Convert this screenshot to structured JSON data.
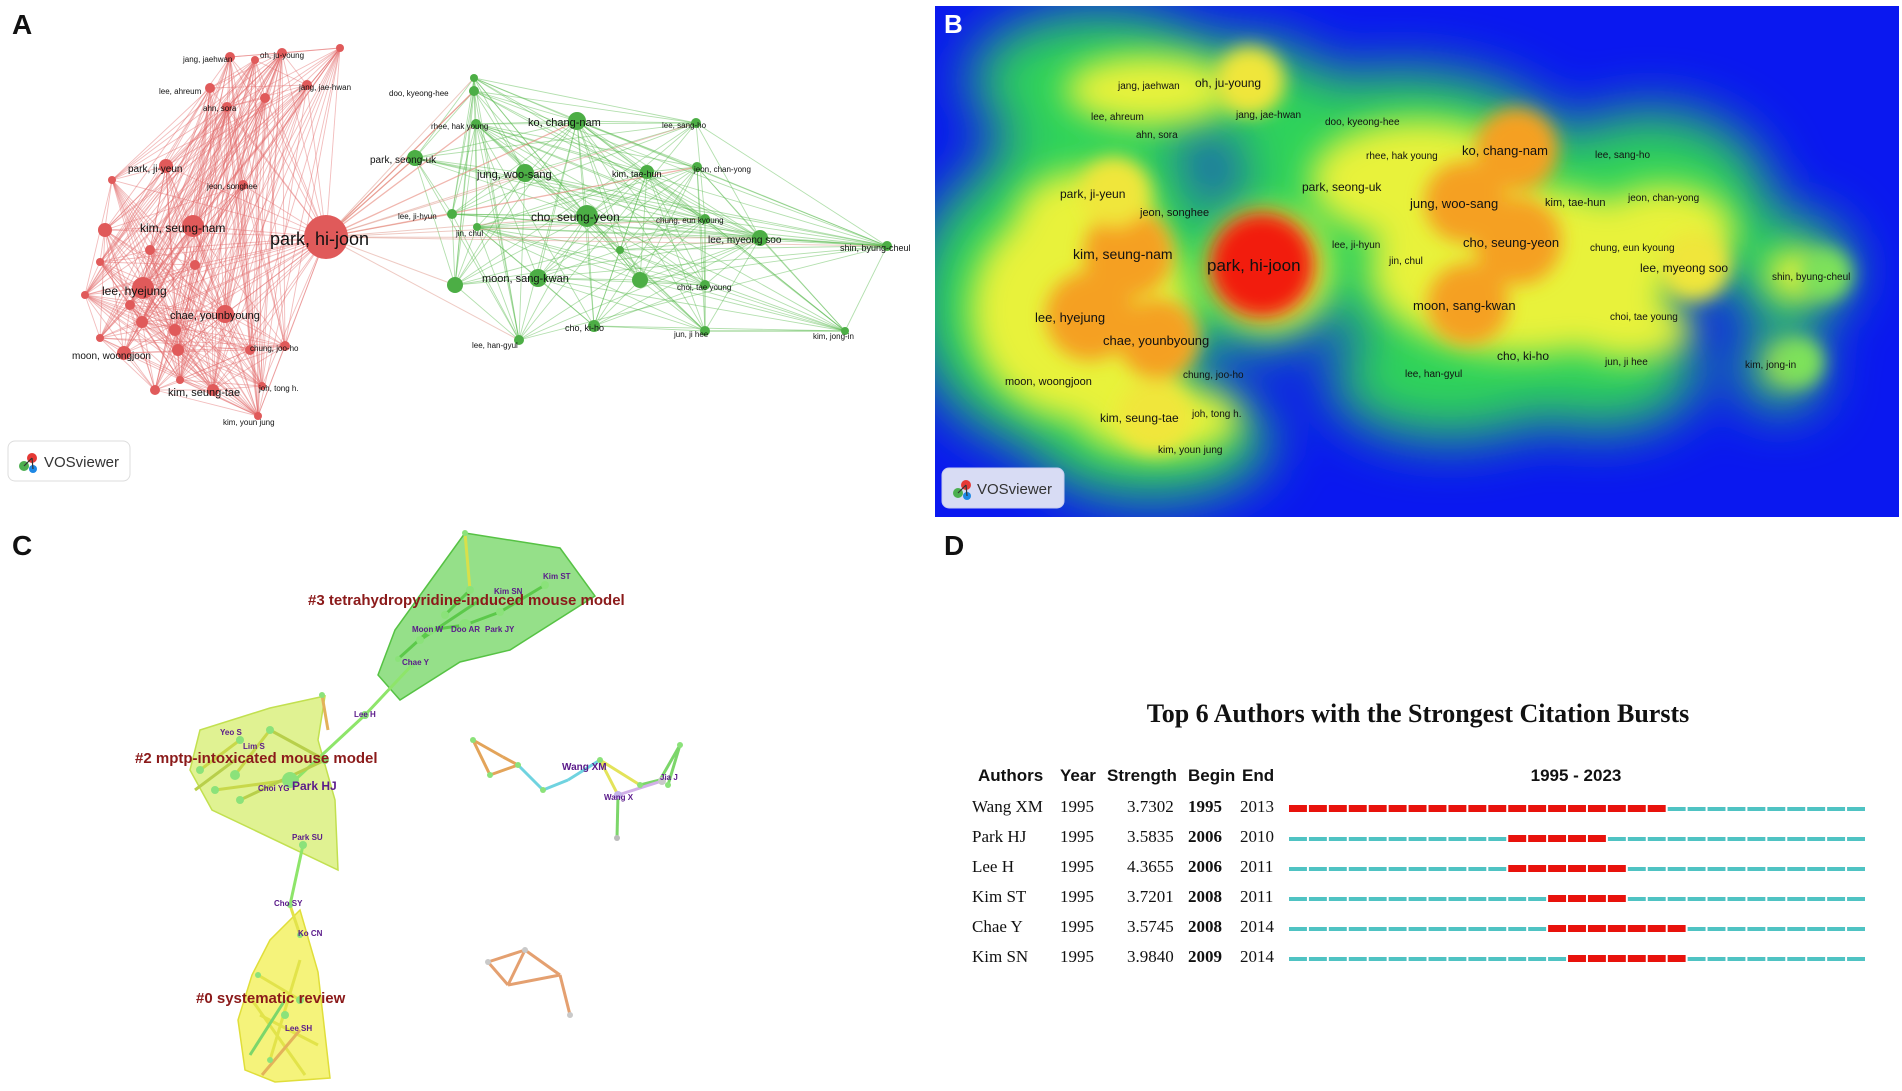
{
  "panels": {
    "a": {
      "letter": "A",
      "watermark": "VOSviewer",
      "edges_from_hub": [
        "park, seong-uk",
        "rhee, hak young",
        "ko, chang-nam",
        "doo, kyeong-hee",
        "jeon, chan-yong"
      ],
      "nodes": [
        {
          "label": "park, hi-joon",
          "cluster": "red",
          "size": 22
        },
        {
          "label": "kim, seung-nam",
          "cluster": "red",
          "size": 11
        },
        {
          "label": "lee, hyejung",
          "cluster": "red",
          "size": 11
        },
        {
          "label": "chae, younbyoung",
          "cluster": "red",
          "size": 9
        },
        {
          "label": "park, ji-yeun",
          "cluster": "red",
          "size": 7
        },
        {
          "label": "jeon, songhee",
          "cluster": "red",
          "size": 5
        },
        {
          "label": "oh, ju-young",
          "cluster": "red",
          "size": 5
        },
        {
          "label": "jang, jaehwan",
          "cluster": "red",
          "size": 5
        },
        {
          "label": "lee, ahreum",
          "cluster": "red",
          "size": 5
        },
        {
          "label": "ahn, sora",
          "cluster": "red",
          "size": 5
        },
        {
          "label": "jang, jae-hwan",
          "cluster": "red",
          "size": 5
        },
        {
          "label": "moon, woongjoon",
          "cluster": "red",
          "size": 7
        },
        {
          "label": "kim, seung-tae",
          "cluster": "red",
          "size": 6
        },
        {
          "label": "chung, joo-ho",
          "cluster": "red",
          "size": 5
        },
        {
          "label": "joh, tong h.",
          "cluster": "red",
          "size": 4
        },
        {
          "label": "kim, youn jung",
          "cluster": "red",
          "size": 4
        },
        {
          "label": "cho, seung-yeon",
          "cluster": "green",
          "size": 11
        },
        {
          "label": "moon, sang-kwan",
          "cluster": "green",
          "size": 9
        },
        {
          "label": "jung, woo-sang",
          "cluster": "green",
          "size": 9
        },
        {
          "label": "ko, chang-nam",
          "cluster": "green",
          "size": 9
        },
        {
          "label": "park, seong-uk",
          "cluster": "green",
          "size": 8
        },
        {
          "label": "kim, tae-hun",
          "cluster": "green",
          "size": 7
        },
        {
          "label": "lee, myeong soo",
          "cluster": "green",
          "size": 8
        },
        {
          "label": "cho, ki-ho",
          "cluster": "green",
          "size": 6
        },
        {
          "label": "doo, kyeong-hee",
          "cluster": "green",
          "size": 5
        },
        {
          "label": "rhee, hak young",
          "cluster": "green",
          "size": 5
        },
        {
          "label": "lee, sang-ho",
          "cluster": "green",
          "size": 5
        },
        {
          "label": "jeon, chan-yong",
          "cluster": "green",
          "size": 5
        },
        {
          "label": "chung, eun kyoung",
          "cluster": "green",
          "size": 5
        },
        {
          "label": "choi, tae young",
          "cluster": "green",
          "size": 5
        },
        {
          "label": "lee, ji-hyun",
          "cluster": "green",
          "size": 5
        },
        {
          "label": "jin, chul",
          "cluster": "green",
          "size": 4
        },
        {
          "label": "lee, han-gyul",
          "cluster": "green",
          "size": 5
        },
        {
          "label": "jun, ji hee",
          "cluster": "green",
          "size": 5
        },
        {
          "label": "shin, byung-cheul",
          "cluster": "green",
          "size": 5
        },
        {
          "label": "kim, jong-in",
          "cluster": "green",
          "size": 4
        }
      ]
    },
    "b": {
      "letter": "B",
      "watermark": "VOSviewer",
      "density_peaks": [
        {
          "label": "park, hi-joon",
          "intensity": 1.0
        },
        {
          "label": "kim, seung-nam",
          "intensity": 0.8
        },
        {
          "label": "lee, hyejung",
          "intensity": 0.8
        },
        {
          "label": "cho, seung-yeon",
          "intensity": 0.78
        },
        {
          "label": "ko, chang-nam",
          "intensity": 0.72
        },
        {
          "label": "jung, woo-sang",
          "intensity": 0.7
        },
        {
          "label": "moon, sang-kwan",
          "intensity": 0.7
        },
        {
          "label": "chae, younbyoung",
          "intensity": 0.68
        },
        {
          "label": "kim, seung-tae",
          "intensity": 0.6
        },
        {
          "label": "oh, ju-young",
          "intensity": 0.55
        },
        {
          "label": "park, ji-yeun",
          "intensity": 0.55
        },
        {
          "label": "lee, myeong soo",
          "intensity": 0.55
        },
        {
          "label": "shin, byung-cheul",
          "intensity": 0.3
        },
        {
          "label": "kim, jong-in",
          "intensity": 0.25
        }
      ]
    },
    "c": {
      "letter": "C",
      "clusters": [
        {
          "label": "#3 tetrahydropyridine-induced mouse model",
          "color": "#7bd86b"
        },
        {
          "label": "#2 mptp-intoxicated mouse model",
          "color": "#d6ee6e"
        },
        {
          "label": "#0 systematic review",
          "color": "#f2f05a"
        }
      ],
      "authors": [
        "Kim ST",
        "Kim SN",
        "Moon W",
        "Doo AR",
        "Park JY",
        "Chae Y",
        "Lee H",
        "Yeo S",
        "Lim S",
        "Choi YG",
        "Park HJ",
        "Park SU",
        "Cho SY",
        "Ko CN",
        "Lee SH",
        "Wang XM",
        "Jia J",
        "Wang X"
      ]
    },
    "d": {
      "letter": "D",
      "title": "Top 6 Authors with the Strongest Citation Bursts",
      "headers": {
        "authors": "Authors",
        "year": "Year",
        "strength": "Strength",
        "begin": "Begin",
        "end": "End",
        "range": "1995 - 2023"
      },
      "range_start": 1995,
      "range_end": 2023,
      "colors": {
        "burst": "#e8120c",
        "base": "#4fc3c3"
      },
      "rows": [
        {
          "author": "Wang XM",
          "year": "1995",
          "strength": "3.7302",
          "begin": "1995",
          "end": "2013"
        },
        {
          "author": "Park HJ",
          "year": "1995",
          "strength": "3.5835",
          "begin": "2006",
          "end": "2010"
        },
        {
          "author": "Lee H",
          "year": "1995",
          "strength": "4.3655",
          "begin": "2006",
          "end": "2011"
        },
        {
          "author": "Kim ST",
          "year": "1995",
          "strength": "3.7201",
          "begin": "2008",
          "end": "2011"
        },
        {
          "author": "Chae Y",
          "year": "1995",
          "strength": "3.5745",
          "begin": "2008",
          "end": "2014"
        },
        {
          "author": "Kim SN",
          "year": "1995",
          "strength": "3.9840",
          "begin": "2009",
          "end": "2014"
        }
      ]
    }
  }
}
